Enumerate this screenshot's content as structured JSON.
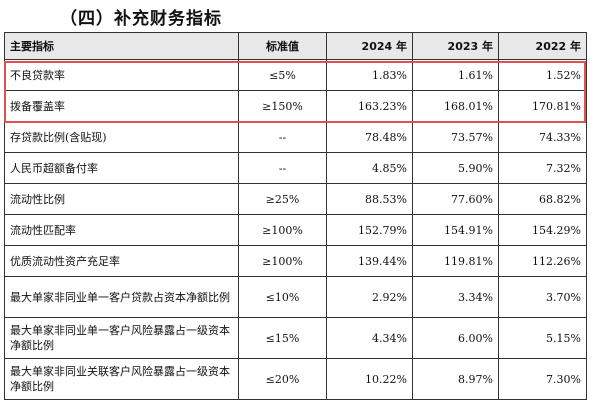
{
  "section_title": "（四）补充财务指标",
  "table": {
    "headers": [
      "主要指标",
      "标准值",
      "2024 年",
      "2023 年",
      "2022 年"
    ],
    "rows": [
      {
        "name": "不良贷款率",
        "std": "≤5%",
        "y2024": "1.83%",
        "y2023": "1.61%",
        "y2022": "1.52%"
      },
      {
        "name": "拨备覆盖率",
        "std": "≥150%",
        "y2024": "163.23%",
        "y2023": "168.01%",
        "y2022": "170.81%"
      },
      {
        "name": "存贷款比例(含贴现)",
        "std": "--",
        "y2024": "78.48%",
        "y2023": "73.57%",
        "y2022": "74.33%"
      },
      {
        "name": "人民币超额备付率",
        "std": "--",
        "y2024": "4.85%",
        "y2023": "5.90%",
        "y2022": "7.32%"
      },
      {
        "name": "流动性比例",
        "std": "≥25%",
        "y2024": "88.53%",
        "y2023": "77.60%",
        "y2022": "68.82%"
      },
      {
        "name": "流动性匹配率",
        "std": "≥100%",
        "y2024": "152.79%",
        "y2023": "154.91%",
        "y2022": "154.29%"
      },
      {
        "name": "优质流动性资产充足率",
        "std": "≥100%",
        "y2024": "139.44%",
        "y2023": "119.81%",
        "y2022": "112.26%"
      },
      {
        "name": "最大单家非同业单一客户贷款占资本净额比例",
        "std": "≤10%",
        "y2024": "2.92%",
        "y2023": "3.34%",
        "y2022": "3.70%"
      },
      {
        "name": "最大单家非同业单一客户风险暴露占一级资本净额比例",
        "std": "≤15%",
        "y2024": "4.34%",
        "y2023": "6.00%",
        "y2022": "5.15%"
      },
      {
        "name": "最大单家非同业关联客户风险暴露占一级资本净额比例",
        "std": "≤20%",
        "y2024": "10.22%",
        "y2023": "8.97%",
        "y2022": "7.30%"
      }
    ]
  }
}
